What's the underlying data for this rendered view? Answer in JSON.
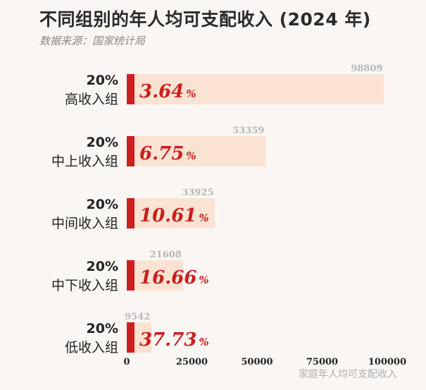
{
  "title": "不同组别的年人均可支配收入 (2024 年)",
  "source": "数据来源：国家统计局",
  "chart_data": {
    "type": "bar",
    "orientation": "horizontal",
    "title": "不同组别的年人均可支配收入 (2024 年)",
    "subtitle": "数据来源：国家统计局",
    "xlabel": "家庭年人均可支配收入",
    "ylabel": "",
    "xlim": [
      0,
      100000
    ],
    "xticks": [
      0,
      25000,
      50000,
      75000,
      100000
    ],
    "grid": false,
    "colors": {
      "bar": "#fbe3d3",
      "accent": "#cc1f1f",
      "share_text": "#cc1f1f",
      "value_text": "#b8b8b8"
    },
    "categories": [
      {
        "pct": "20%",
        "name": "高收入组",
        "value": 98809,
        "share": "3.64",
        "share_unit": "%"
      },
      {
        "pct": "20%",
        "name": "中上收入组",
        "value": 53359,
        "share": "6.75",
        "share_unit": "%"
      },
      {
        "pct": "20%",
        "name": "中间收入组",
        "value": 33925,
        "share": "10.61",
        "share_unit": "%"
      },
      {
        "pct": "20%",
        "name": "中下收入组",
        "value": 21608,
        "share": "16.66",
        "share_unit": "%"
      },
      {
        "pct": "20%",
        "name": "低收入组",
        "value": 9542,
        "share": "37.73",
        "share_unit": "%"
      }
    ]
  }
}
